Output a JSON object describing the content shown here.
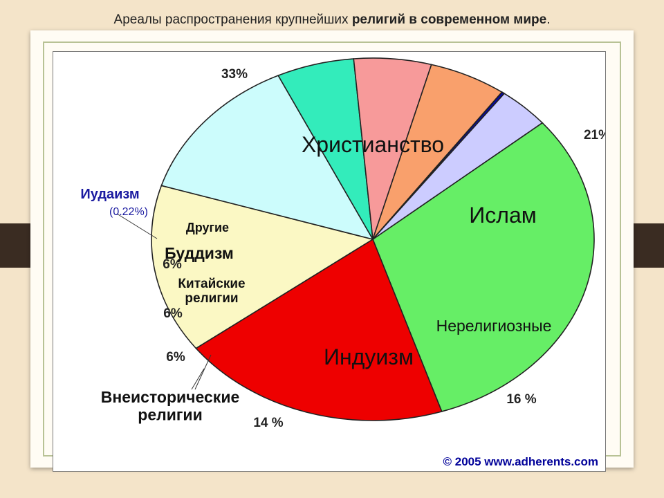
{
  "slide": {
    "title_regular": "Ареалы распространения крупнейших ",
    "title_bold": "религий в современном мире",
    "title_end": "."
  },
  "copyright": "© 2005 www.adherents.com",
  "chart_data": {
    "type": "pie",
    "slices": [
      {
        "label": "Христианство",
        "value": 33,
        "value_label": "33%",
        "color": "#66ee66"
      },
      {
        "label": "Ислам",
        "value": 21,
        "value_label": "21%",
        "color": "#ee0000"
      },
      {
        "label": "Нерелигиозные",
        "value": 16,
        "value_label": "16 %",
        "color": "#fbf8c4"
      },
      {
        "label": "Индуизм",
        "value": 14,
        "value_label": "14 %",
        "color": "#ccfcfc"
      },
      {
        "label": "Внеисторические религии",
        "label_lines": [
          "Внеисторические",
          "религии"
        ],
        "value": 6,
        "value_label": "6%",
        "color": "#33ecbb"
      },
      {
        "label": "Китайские религии",
        "label_lines": [
          "Китайские",
          "религии"
        ],
        "value": 6,
        "value_label": "6%",
        "color": "#f79a9a"
      },
      {
        "label": "Буддизм",
        "value": 6,
        "value_label": "6%",
        "color": "#f9a06c"
      },
      {
        "label": "Иудаизм",
        "value": 0.22,
        "value_label": "(0.22%)",
        "color": "#0000bb"
      },
      {
        "label": "Другие",
        "value": 4,
        "value_label": "",
        "color": "#ccccff"
      }
    ]
  }
}
